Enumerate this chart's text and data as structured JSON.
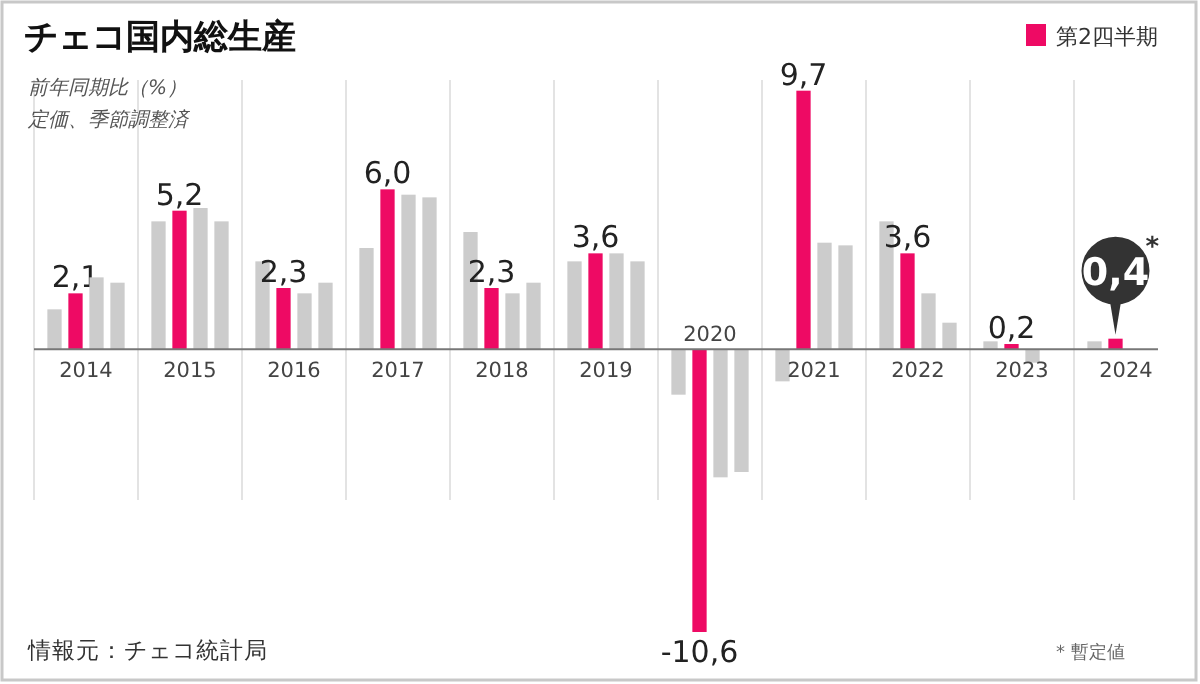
{
  "chart_data": {
    "type": "bar",
    "title": "チェコ国内総生産",
    "subtitle": "前年同期比（%）",
    "categories": [
      "2014",
      "2015",
      "2016",
      "2017",
      "2018",
      "2019",
      "2020",
      "2021",
      "2022",
      "2023",
      "2024"
    ],
    "series": [
      {
        "color": "#cccccc",
        "values": [
          1.5,
          4.8,
          3.3,
          3.8,
          4.4,
          3.3,
          -1.7,
          -1.2,
          4.8,
          0.3,
          0.3
        ]
      },
      {
        "name": "第2四半期",
        "color": "#ee0a64",
        "values": [
          2.1,
          5.2,
          2.3,
          6.0,
          2.3,
          3.6,
          -10.6,
          9.7,
          3.6,
          0.2,
          0.4
        ],
        "value_labels": [
          "2,1",
          "5,2",
          "2,3",
          "6,0",
          "2,3",
          "3,6",
          "-10,6",
          "9,7",
          "3,6",
          "0,2",
          "0,4"
        ]
      },
      {
        "color": "#cccccc",
        "values": [
          2.7,
          5.3,
          2.1,
          5.8,
          2.1,
          3.6,
          -4.8,
          4.0,
          2.1,
          -0.5,
          null
        ]
      },
      {
        "color": "#cccccc",
        "values": [
          2.5,
          4.8,
          2.5,
          5.7,
          2.5,
          3.3,
          -4.6,
          3.9,
          1.0,
          null,
          null
        ]
      }
    ],
    "tick_labels": "x",
    "grid": "x",
    "legend": "top right",
    "annotations": [
      "情報元：チェコ統計局",
      "* 暫定値",
      "*",
      "定価、季節調整済"
    ]
  }
}
